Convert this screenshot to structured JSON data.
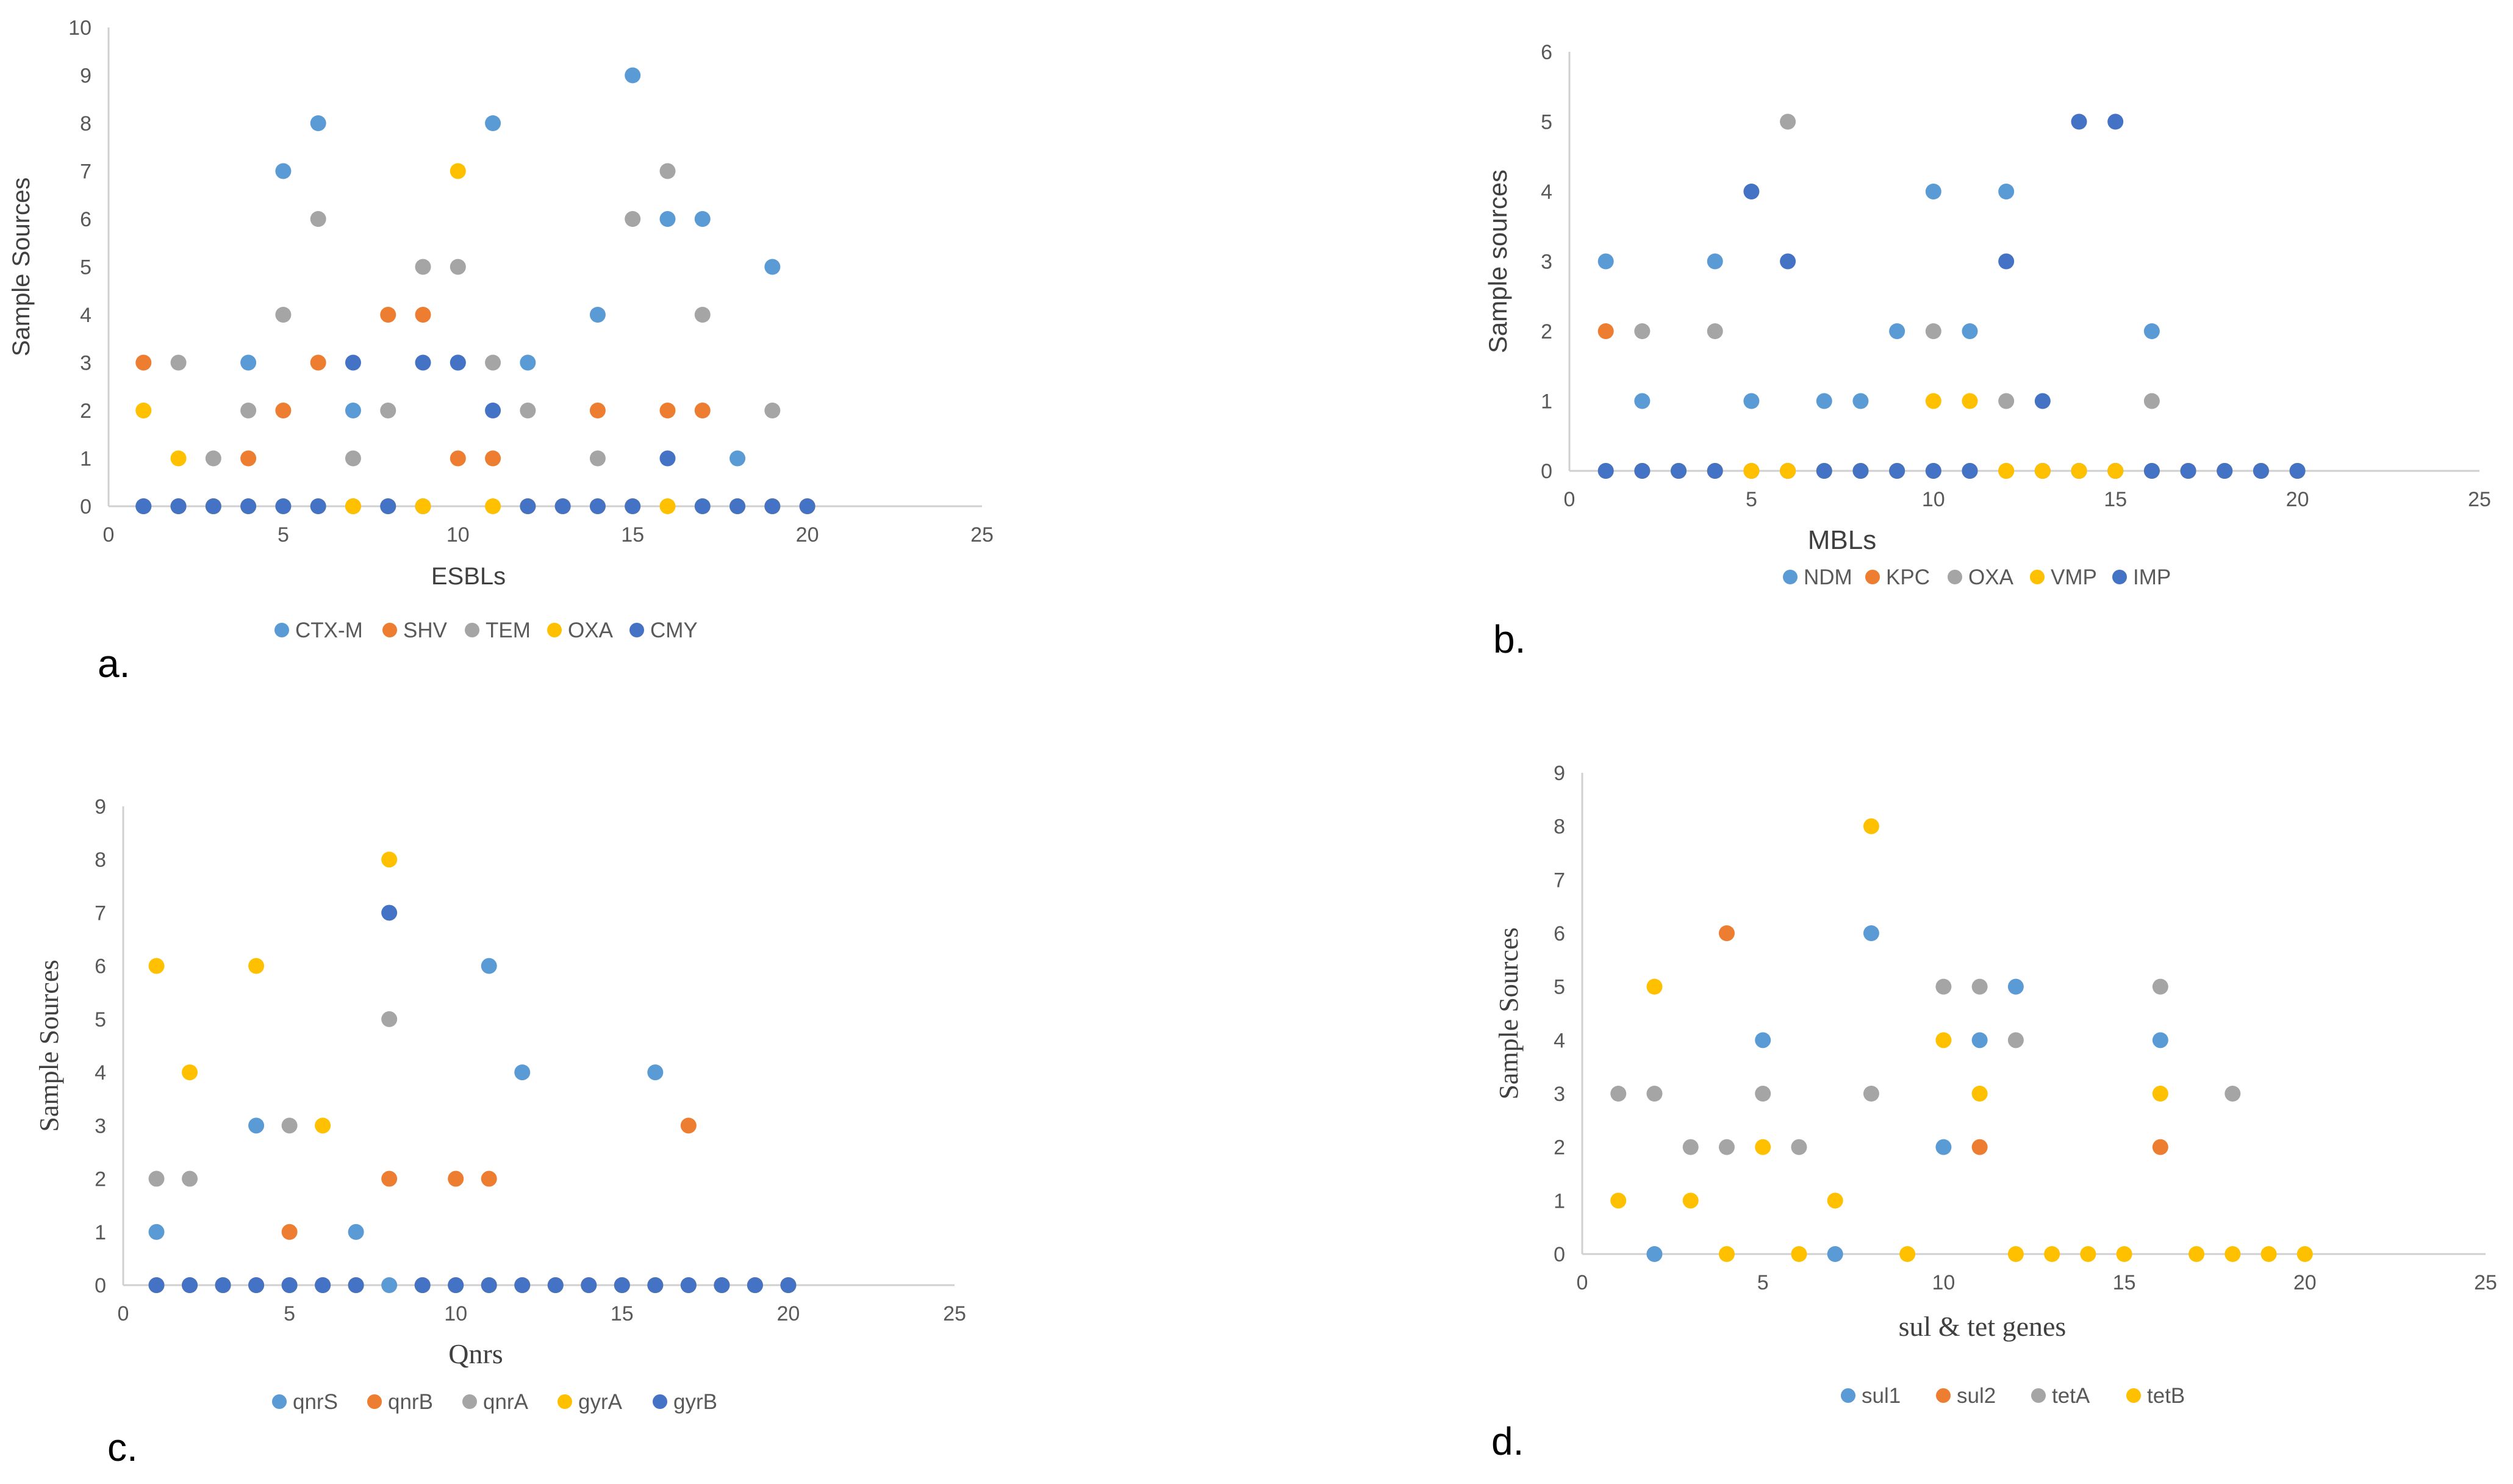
{
  "series_colors": {
    "c1": "#5b9bd5",
    "c2": "#ed7d31",
    "c3": "#a5a5a5",
    "c4": "#ffc000",
    "c5": "#4472c4"
  },
  "chart_data": [
    {
      "type": "scatter",
      "panel_label": "a.",
      "title": "",
      "xlabel": "ESBLs",
      "ylabel": "Sample Sources",
      "xlim": [
        0,
        25
      ],
      "ylim": [
        0,
        10
      ],
      "x_ticks": [
        "0",
        "5",
        "10",
        "15",
        "20",
        "25"
      ],
      "y_ticks": [
        "0",
        "1",
        "2",
        "3",
        "4",
        "5",
        "6",
        "7",
        "8",
        "9",
        "10"
      ],
      "series": [
        {
          "name": "CTX-M",
          "color": "#5b9bd5",
          "x": [
            1,
            2,
            3,
            4,
            5,
            6,
            7,
            8,
            9,
            10,
            11,
            12,
            13,
            14,
            15,
            16,
            17,
            18,
            19,
            20
          ],
          "y": [
            0,
            0,
            0,
            3,
            7,
            8,
            2,
            0,
            0,
            3,
            8,
            3,
            0,
            4,
            9,
            6,
            6,
            1,
            5,
            0
          ]
        },
        {
          "name": "SHV",
          "color": "#ed7d31",
          "x": [
            1,
            2,
            3,
            4,
            5,
            6,
            7,
            8,
            9,
            10,
            11,
            12,
            13,
            14,
            15,
            16,
            17,
            18,
            19,
            20
          ],
          "y": [
            3,
            0,
            0,
            1,
            2,
            3,
            0,
            4,
            4,
            1,
            1,
            0,
            0,
            2,
            0,
            2,
            2,
            0,
            0,
            0
          ]
        },
        {
          "name": "TEM",
          "color": "#a5a5a5",
          "x": [
            1,
            2,
            3,
            4,
            5,
            6,
            7,
            8,
            9,
            10,
            11,
            12,
            13,
            14,
            15,
            16,
            17,
            18,
            19,
            20
          ],
          "y": [
            0,
            3,
            1,
            2,
            4,
            6,
            1,
            2,
            5,
            5,
            3,
            2,
            0,
            1,
            6,
            7,
            4,
            0,
            2,
            0
          ]
        },
        {
          "name": "OXA",
          "color": "#ffc000",
          "x": [
            1,
            2,
            3,
            4,
            5,
            6,
            7,
            8,
            9,
            10,
            11,
            12,
            13,
            14,
            15,
            16,
            17,
            18,
            19,
            20
          ],
          "y": [
            2,
            1,
            0,
            0,
            0,
            0,
            0,
            0,
            0,
            7,
            0,
            0,
            0,
            0,
            0,
            0,
            0,
            0,
            0,
            0
          ]
        },
        {
          "name": "CMY",
          "color": "#4472c4",
          "x": [
            1,
            2,
            3,
            4,
            5,
            6,
            7,
            8,
            9,
            10,
            11,
            12,
            13,
            14,
            15,
            16,
            17,
            18,
            19,
            20
          ],
          "y": [
            0,
            0,
            0,
            0,
            0,
            0,
            3,
            0,
            3,
            3,
            2,
            0,
            0,
            0,
            0,
            1,
            0,
            0,
            0,
            0
          ]
        }
      ]
    },
    {
      "type": "scatter",
      "panel_label": "b.",
      "title": "",
      "xlabel": "MBLs",
      "ylabel": "Sample sources",
      "xlim": [
        0,
        25
      ],
      "ylim": [
        0,
        6
      ],
      "x_ticks": [
        "0",
        "5",
        "10",
        "15",
        "20",
        "25"
      ],
      "y_ticks": [
        "0",
        "1",
        "2",
        "3",
        "4",
        "5",
        "6"
      ],
      "series": [
        {
          "name": "NDM",
          "color": "#5b9bd5",
          "x": [
            1,
            2,
            3,
            4,
            5,
            6,
            7,
            8,
            9,
            10,
            11,
            12,
            13,
            14,
            15,
            16,
            17,
            18,
            19,
            20
          ],
          "y": [
            3,
            1,
            0,
            3,
            1,
            0,
            1,
            1,
            2,
            4,
            2,
            4,
            0,
            0,
            0,
            2,
            0,
            0,
            0,
            0
          ]
        },
        {
          "name": "KPC",
          "color": "#ed7d31",
          "x": [
            1,
            2,
            3,
            4,
            5,
            6,
            7,
            8,
            9,
            10,
            11,
            12,
            13,
            14,
            15,
            16,
            17,
            18,
            19,
            20
          ],
          "y": [
            2,
            0,
            0,
            0,
            0,
            0,
            0,
            0,
            0,
            0,
            0,
            0,
            0,
            0,
            0,
            0,
            0,
            0,
            0,
            0
          ]
        },
        {
          "name": "OXA",
          "color": "#a5a5a5",
          "x": [
            1,
            2,
            3,
            4,
            5,
            6,
            7,
            8,
            9,
            10,
            11,
            12,
            13,
            14,
            15,
            16,
            17,
            18,
            19,
            20
          ],
          "y": [
            0,
            2,
            0,
            2,
            0,
            5,
            0,
            0,
            0,
            2,
            0,
            1,
            0,
            0,
            0,
            1,
            0,
            0,
            0,
            0
          ]
        },
        {
          "name": "VMP",
          "color": "#ffc000",
          "x": [
            1,
            2,
            3,
            4,
            5,
            6,
            7,
            8,
            9,
            10,
            11,
            12,
            13,
            14,
            15,
            16,
            17,
            18,
            19,
            20
          ],
          "y": [
            0,
            0,
            0,
            0,
            0,
            0,
            0,
            0,
            0,
            1,
            1,
            0,
            0,
            0,
            0,
            0,
            0,
            0,
            0,
            0
          ]
        },
        {
          "name": "IMP",
          "color": "#4472c4",
          "x": [
            1,
            2,
            3,
            4,
            5,
            6,
            7,
            8,
            9,
            10,
            11,
            12,
            13,
            14,
            15,
            16,
            17,
            18,
            19,
            20
          ],
          "y": [
            0,
            0,
            0,
            0,
            4,
            3,
            0,
            0,
            0,
            0,
            0,
            3,
            1,
            5,
            5,
            0,
            0,
            0,
            0,
            0
          ]
        }
      ]
    },
    {
      "type": "scatter",
      "panel_label": "c.",
      "title": "",
      "xlabel": "Qnrs",
      "ylabel": "Sample Sources",
      "xlim": [
        0,
        25
      ],
      "ylim": [
        0,
        9
      ],
      "x_ticks": [
        "0",
        "5",
        "10",
        "15",
        "20",
        "25"
      ],
      "y_ticks": [
        "0",
        "1",
        "2",
        "3",
        "4",
        "5",
        "6",
        "7",
        "8",
        "9"
      ],
      "series": [
        {
          "name": "qnrS",
          "color": "#5b9bd5",
          "x": [
            1,
            2,
            3,
            4,
            5,
            6,
            7,
            8,
            9,
            10,
            11,
            12,
            13,
            14,
            15,
            16,
            17,
            18,
            19,
            20
          ],
          "y": [
            1,
            0,
            0,
            3,
            0,
            0,
            1,
            0,
            0,
            0,
            6,
            4,
            0,
            0,
            0,
            4,
            0,
            0,
            0,
            0
          ]
        },
        {
          "name": "qnrB",
          "color": "#ed7d31",
          "x": [
            1,
            2,
            3,
            4,
            5,
            6,
            7,
            8,
            9,
            10,
            11,
            12,
            13,
            14,
            15,
            16,
            17,
            18,
            19,
            20
          ],
          "y": [
            0,
            0,
            0,
            0,
            1,
            0,
            0,
            2,
            0,
            2,
            2,
            0,
            0,
            0,
            0,
            0,
            3,
            0,
            0,
            0
          ]
        },
        {
          "name": "qnrA",
          "color": "#a5a5a5",
          "x": [
            1,
            2,
            3,
            4,
            5,
            6,
            7,
            8,
            9,
            10,
            11,
            12,
            13,
            14,
            15,
            16,
            17,
            18,
            19,
            20
          ],
          "y": [
            2,
            2,
            0,
            0,
            3,
            0,
            0,
            5,
            0,
            0,
            0,
            0,
            0,
            0,
            0,
            0,
            0,
            0,
            0,
            0
          ]
        },
        {
          "name": "gyrA",
          "color": "#ffc000",
          "x": [
            1,
            2,
            3,
            4,
            5,
            6,
            7,
            8,
            9,
            10,
            11,
            12,
            13,
            14,
            15,
            16,
            17,
            18,
            19,
            20
          ],
          "y": [
            6,
            4,
            0,
            6,
            0,
            3,
            0,
            8,
            0,
            0,
            0,
            0,
            0,
            0,
            0,
            0,
            0,
            0,
            0,
            0
          ]
        },
        {
          "name": "gyrB",
          "color": "#4472c4",
          "x": [
            1,
            2,
            3,
            4,
            5,
            6,
            7,
            8,
            9,
            10,
            11,
            12,
            13,
            14,
            15,
            16,
            17,
            18,
            19,
            20
          ],
          "y": [
            0,
            0,
            0,
            0,
            0,
            0,
            0,
            7,
            0,
            0,
            0,
            0,
            0,
            0,
            0,
            0,
            0,
            0,
            0,
            0
          ]
        }
      ]
    },
    {
      "type": "scatter",
      "panel_label": "d.",
      "title": "",
      "xlabel": "sul & tet genes",
      "ylabel": "Sample Sources",
      "xlim": [
        0,
        25
      ],
      "ylim": [
        0,
        9
      ],
      "x_ticks": [
        "0",
        "5",
        "10",
        "15",
        "20",
        "25"
      ],
      "y_ticks": [
        "0",
        "1",
        "2",
        "3",
        "4",
        "5",
        "6",
        "7",
        "8",
        "9"
      ],
      "series": [
        {
          "name": "sul1",
          "color": "#5b9bd5",
          "x": [
            2,
            5,
            7,
            8,
            10,
            11,
            12,
            16
          ],
          "y": [
            0,
            4,
            0,
            6,
            2,
            4,
            5,
            4
          ]
        },
        {
          "name": "sul2",
          "color": "#ed7d31",
          "x": [
            4,
            11,
            16
          ],
          "y": [
            6,
            2,
            2
          ]
        },
        {
          "name": "tetA",
          "color": "#a5a5a5",
          "x": [
            1,
            2,
            3,
            4,
            5,
            6,
            8,
            10,
            11,
            12,
            16,
            18
          ],
          "y": [
            3,
            3,
            2,
            2,
            3,
            2,
            3,
            5,
            5,
            4,
            5,
            3
          ]
        },
        {
          "name": "tetB",
          "color": "#ffc000",
          "x": [
            1,
            2,
            3,
            4,
            5,
            6,
            7,
            8,
            9,
            10,
            11,
            12,
            13,
            14,
            15,
            16,
            17,
            18,
            19,
            20
          ],
          "y": [
            1,
            5,
            1,
            0,
            2,
            0,
            1,
            8,
            0,
            4,
            3,
            0,
            0,
            0,
            0,
            3,
            0,
            0,
            0,
            0
          ]
        }
      ]
    }
  ]
}
